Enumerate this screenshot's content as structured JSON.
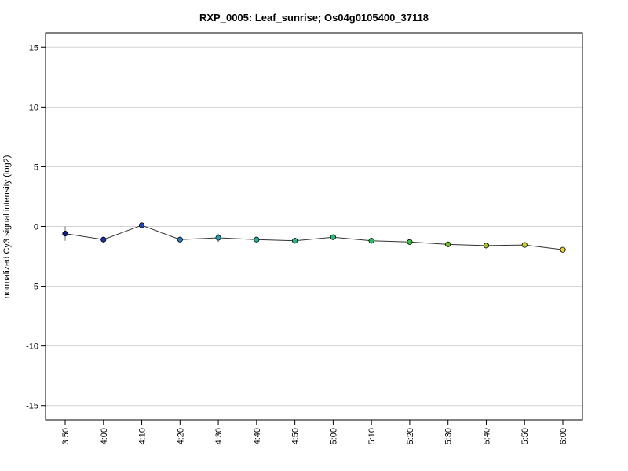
{
  "chart_data": {
    "type": "line",
    "title": "RXP_0005: Leaf_sunrise; Os04g0105400_37118",
    "xlabel": "",
    "ylabel": "normalized Cy3 signal intensity (log2)",
    "categories": [
      "3:50",
      "4:00",
      "4:10",
      "4:20",
      "4:30",
      "4:40",
      "4:50",
      "5:00",
      "5:10",
      "5:20",
      "5:30",
      "5:40",
      "5:50",
      "6:00"
    ],
    "values": [
      -0.6,
      -1.1,
      0.1,
      -1.1,
      -0.95,
      -1.1,
      -1.2,
      -0.9,
      -1.2,
      -1.3,
      -1.5,
      -1.6,
      -1.55,
      -1.95
    ],
    "error": [
      0.6,
      0.15,
      0.1,
      0.1,
      0.35,
      0.1,
      0.1,
      0.12,
      0.1,
      0.1,
      0.1,
      0.12,
      0.12,
      0.1
    ],
    "point_colors": [
      "#1a1a8c",
      "#1f2fa8",
      "#2346b8",
      "#2a79b8",
      "#2aa0b4",
      "#22b3a0",
      "#22b890",
      "#22c07a",
      "#2ac060",
      "#3ac040",
      "#6ec02a",
      "#a0c628",
      "#c8cc30",
      "#e6d23a"
    ],
    "yticks": [
      -15,
      -10,
      -5,
      0,
      5,
      10,
      15
    ],
    "ylim": [
      -16.2,
      16.2
    ],
    "grid": true,
    "legend": "none"
  }
}
